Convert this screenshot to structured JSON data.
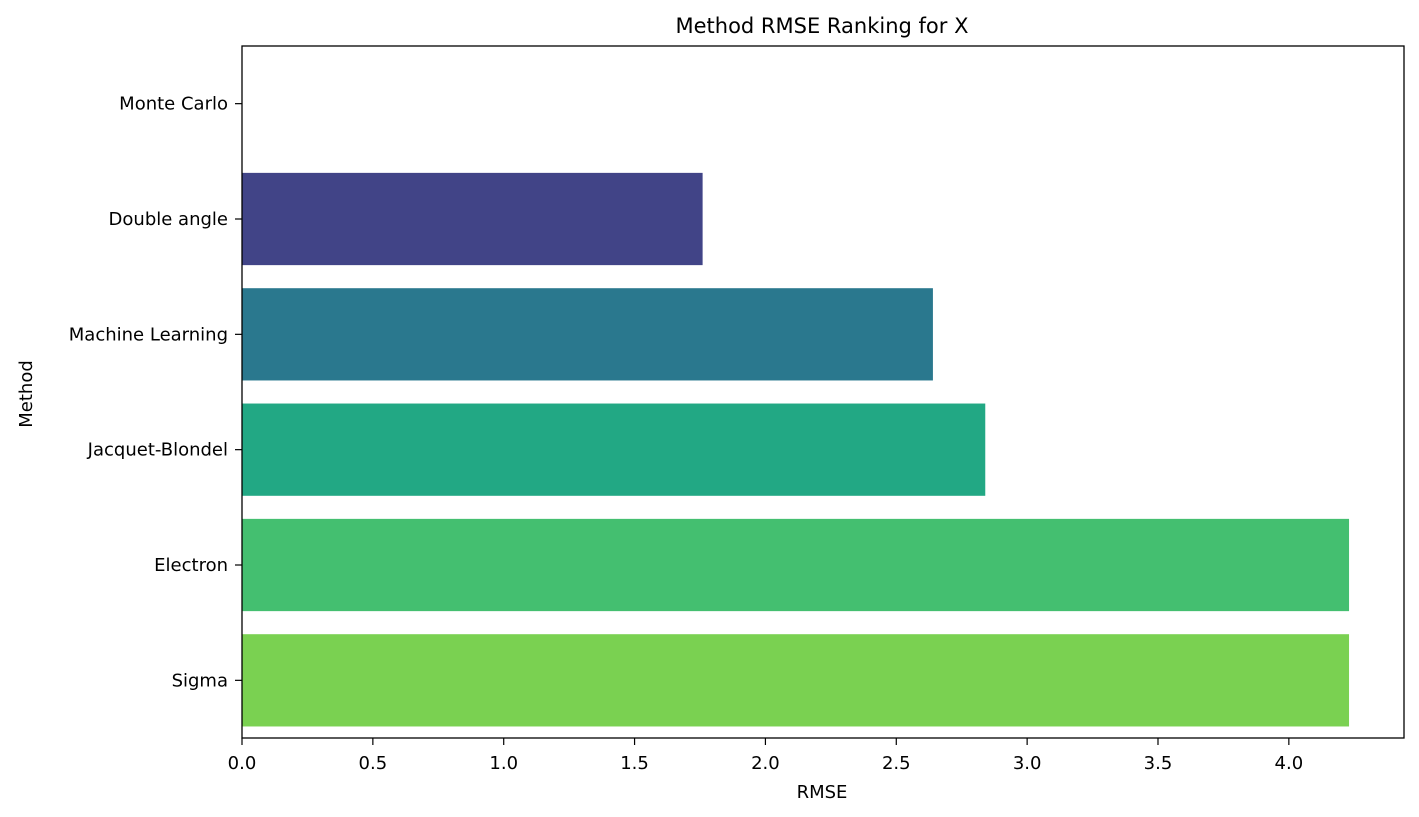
{
  "chart_data": {
    "type": "bar",
    "orientation": "horizontal",
    "title": "Method RMSE Ranking for X",
    "xlabel": "RMSE",
    "ylabel": "Method",
    "categories": [
      "Monte Carlo",
      "Double angle",
      "Machine Learning",
      "Jacquet-Blondel",
      "Electron",
      "Sigma"
    ],
    "values": [
      0.0,
      1.76,
      2.64,
      2.84,
      4.23,
      4.23
    ],
    "colors": [
      "#472d7b",
      "#414487",
      "#2a788e",
      "#22a884",
      "#44bf70",
      "#7ad151"
    ],
    "xlim": [
      0,
      4.44
    ],
    "xticks": [
      0.0,
      0.5,
      1.0,
      1.5,
      2.0,
      2.5,
      3.0,
      3.5,
      4.0
    ],
    "xtick_labels": [
      "0.0",
      "0.5",
      "1.0",
      "1.5",
      "2.0",
      "2.5",
      "3.0",
      "3.5",
      "4.0"
    ],
    "grid": false,
    "legend": "none"
  }
}
